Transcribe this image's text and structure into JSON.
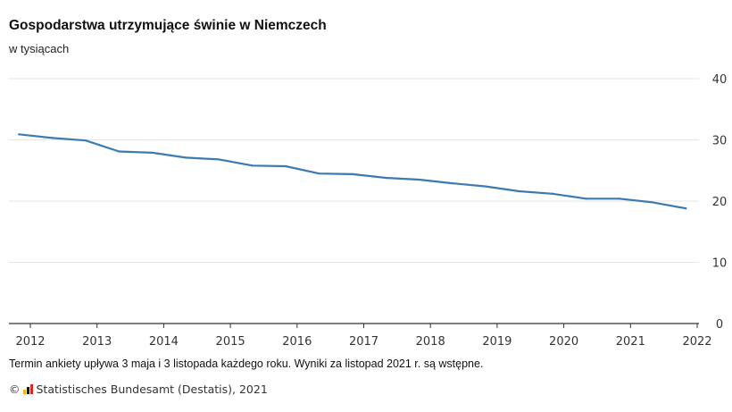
{
  "chart_data": {
    "type": "line",
    "title": "Gospodarstwa utrzymujące świnie w Niemczech",
    "subtitle": "w tysiącach",
    "xlabel": "",
    "ylabel": "",
    "x_ticks": [
      "2012",
      "2013",
      "2014",
      "2015",
      "2016",
      "2017",
      "2018",
      "2019",
      "2020",
      "2021",
      "2022"
    ],
    "y_ticks": [
      "0",
      "10",
      "20",
      "30",
      "40"
    ],
    "ylim": [
      0,
      40
    ],
    "xlim": [
      2012,
      2022
    ],
    "grid": true,
    "series": [
      {
        "color": "#3d7ab0",
        "x": [
          2011.83,
          2012.33,
          2012.83,
          2013.33,
          2013.83,
          2014.33,
          2014.83,
          2015.33,
          2015.83,
          2016.33,
          2016.83,
          2017.33,
          2017.83,
          2018.33,
          2018.83,
          2019.33,
          2019.83,
          2020.33,
          2020.83,
          2021.33,
          2021.83
        ],
        "values": [
          30.9,
          30.3,
          29.9,
          28.1,
          27.9,
          27.1,
          26.8,
          25.8,
          25.7,
          24.5,
          24.4,
          23.8,
          23.5,
          22.9,
          22.4,
          21.6,
          21.2,
          20.4,
          20.4,
          19.8,
          18.8
        ]
      }
    ]
  },
  "footnote": "Termin ankiety upływa 3 maja i 3 listopada każdego roku. Wyniki za listopad 2021 r. są wstępne.",
  "source": {
    "copyright": "©",
    "text": "Statistisches Bundesamt (Destatis), 2021",
    "logo_colors": [
      "#f2b705",
      "#1a1a1a",
      "#d9251d"
    ]
  }
}
